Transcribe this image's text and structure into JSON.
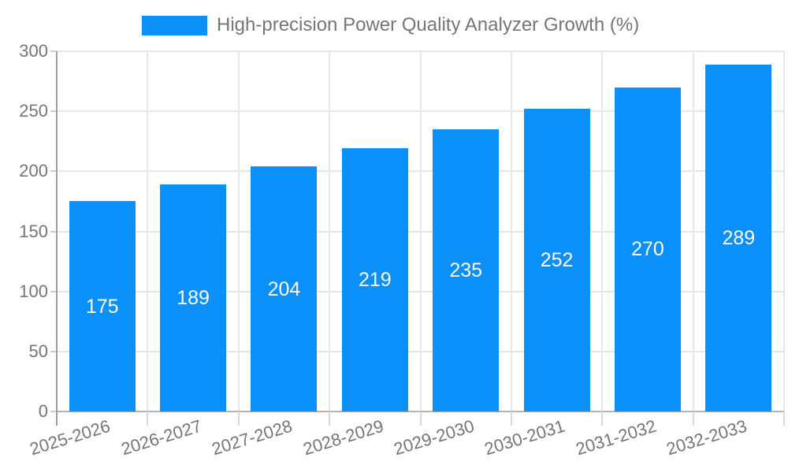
{
  "legend": {
    "label": "High-precision Power Quality Analyzer Growth (%)"
  },
  "chart_data": {
    "type": "bar",
    "title": "High-precision Power Quality Analyzer Growth (%)",
    "categories": [
      "2025-2026",
      "2026-2027",
      "2027-2028",
      "2028-2029",
      "2029-2030",
      "2030-2031",
      "2031-2032",
      "2032-2033"
    ],
    "values": [
      175,
      189,
      204,
      219,
      235,
      252,
      270,
      289
    ],
    "series": [
      {
        "name": "High-precision Power Quality Analyzer Growth (%)",
        "values": [
          175,
          189,
          204,
          219,
          235,
          252,
          270,
          289
        ]
      }
    ],
    "xlabel": "",
    "ylabel": "",
    "ylim": [
      0,
      300
    ],
    "yticks": [
      0,
      50,
      100,
      150,
      200,
      250,
      300
    ],
    "grid": true,
    "legend_position": "top",
    "annotations_inside_bars": true
  },
  "colors": {
    "bar": "#0b8ff9",
    "axis_text": "#757575",
    "annotation_text": "#ffffff",
    "grid_line": "#e6e6e6",
    "axis_line": "#9e9e9e",
    "baseline": "#b3b3b3",
    "tick": "#cccccc",
    "x_tick": "#d9d9d9",
    "background": "#ffffff"
  }
}
